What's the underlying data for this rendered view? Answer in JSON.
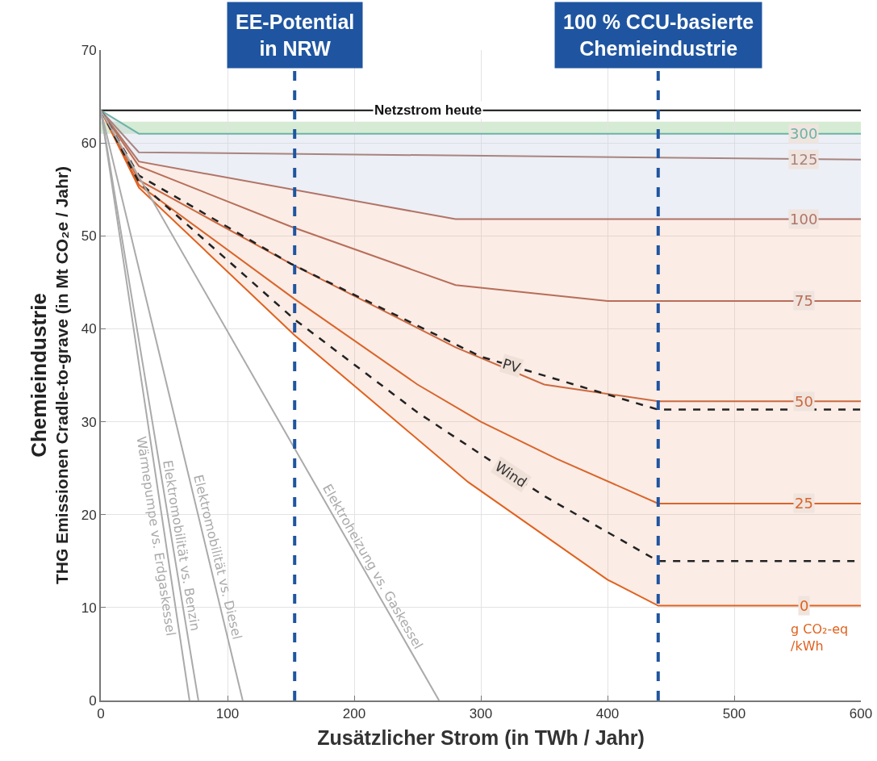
{
  "chart_data": {
    "type": "line",
    "xlabel": "Zusätzlicher Strom (in TWh / Jahr)",
    "ylabel": "Chemieindustrie\nTHG Emissionen Cradle-to-grave (in Mt CO₂e / Jahr)",
    "xlim": [
      0,
      600
    ],
    "xticks": [
      0,
      100,
      200,
      300,
      400,
      500,
      600
    ],
    "ylim": [
      0,
      70
    ],
    "yticks": [
      0,
      10,
      20,
      30,
      40,
      50,
      60,
      70
    ],
    "grid": true,
    "legend": false,
    "marker": "none",
    "series": [
      {
        "name": "Netzstrom heute",
        "color": "#111111",
        "line_style": "solid",
        "x": [
          0,
          600
        ],
        "values": [
          63.5,
          63.5
        ]
      },
      {
        "name": "0",
        "color": "#e0621e",
        "line_style": "solid",
        "x": [
          0,
          30,
          153,
          290,
          400,
          440,
          600
        ],
        "values": [
          63.5,
          55.2,
          39.3,
          23.5,
          13,
          10.2,
          10.2
        ]
      },
      {
        "name": "25",
        "color": "#d9652a",
        "line_style": "solid",
        "x": [
          0,
          30,
          153,
          250,
          300,
          360,
          440,
          600
        ],
        "values": [
          63.5,
          55.5,
          43.2,
          34,
          30,
          26,
          21.2,
          21.2
        ]
      },
      {
        "name": "50",
        "color": "#cc6a40",
        "line_style": "solid",
        "x": [
          0,
          30,
          150,
          280,
          350,
          440,
          600
        ],
        "values": [
          63.5,
          56,
          47,
          38,
          34,
          32.2,
          32.2
        ]
      },
      {
        "name": "75",
        "color": "#b86e58",
        "line_style": "solid",
        "x": [
          0,
          30,
          150,
          280,
          400,
          600
        ],
        "values": [
          63.5,
          57.5,
          51,
          44.7,
          43,
          43
        ]
      },
      {
        "name": "100",
        "color": "#b07468",
        "line_style": "solid",
        "x": [
          0,
          30,
          280,
          600
        ],
        "values": [
          63.5,
          58,
          51.8,
          51.8
        ]
      },
      {
        "name": "125",
        "color": "#a88480",
        "line_style": "solid",
        "x": [
          0,
          30,
          600
        ],
        "values": [
          63.5,
          59,
          58.2
        ]
      },
      {
        "name": "300",
        "color": "#6cb3a8",
        "line_style": "solid",
        "x": [
          0,
          30,
          600
        ],
        "values": [
          63.5,
          61,
          61
        ]
      },
      {
        "name": "PV",
        "color": "#222222",
        "line_style": "dashed",
        "x": [
          0,
          30,
          150,
          300,
          440,
          600
        ],
        "values": [
          63.5,
          56.5,
          47,
          37,
          31.3,
          31.3
        ]
      },
      {
        "name": "Wind",
        "color": "#222222",
        "line_style": "dashed",
        "x": [
          0,
          30,
          153,
          250,
          350,
          440,
          600
        ],
        "values": [
          63.5,
          55.8,
          41,
          31,
          22,
          15,
          15
        ]
      },
      {
        "name": "Wärmepumpe vs. Erdgaskessel",
        "color": "#aaaaaa",
        "line_style": "solid",
        "x": [
          0,
          70
        ],
        "values": [
          63.5,
          0
        ]
      },
      {
        "name": "Elektromobilität vs. Benzin",
        "color": "#aaaaaa",
        "line_style": "solid",
        "x": [
          0,
          77
        ],
        "values": [
          63.5,
          0
        ]
      },
      {
        "name": "Elektromobilität vs. Diesel",
        "color": "#aaaaaa",
        "line_style": "solid",
        "x": [
          0,
          112
        ],
        "values": [
          63.5,
          0
        ]
      },
      {
        "name": "Elektroheizung vs. Gaskessel",
        "color": "#aaaaaa",
        "line_style": "solid",
        "x": [
          0,
          267
        ],
        "values": [
          63.5,
          0
        ]
      }
    ],
    "bands": [
      {
        "axis": "y",
        "from": 61,
        "to": 62.3,
        "color": "#d6ebd3"
      }
    ],
    "ref_lines": [
      {
        "axis": "x",
        "value": 153,
        "label": "EE-Potential\nin NRW",
        "color": "#1f55a0",
        "line_style": "dashed"
      },
      {
        "axis": "x",
        "value": 440,
        "label": "100 % CCU-basierte\nChemieindustrie",
        "color": "#1f55a0",
        "line_style": "dashed"
      }
    ],
    "annotations": [
      "g CO₂-eq\n/kWh"
    ]
  }
}
